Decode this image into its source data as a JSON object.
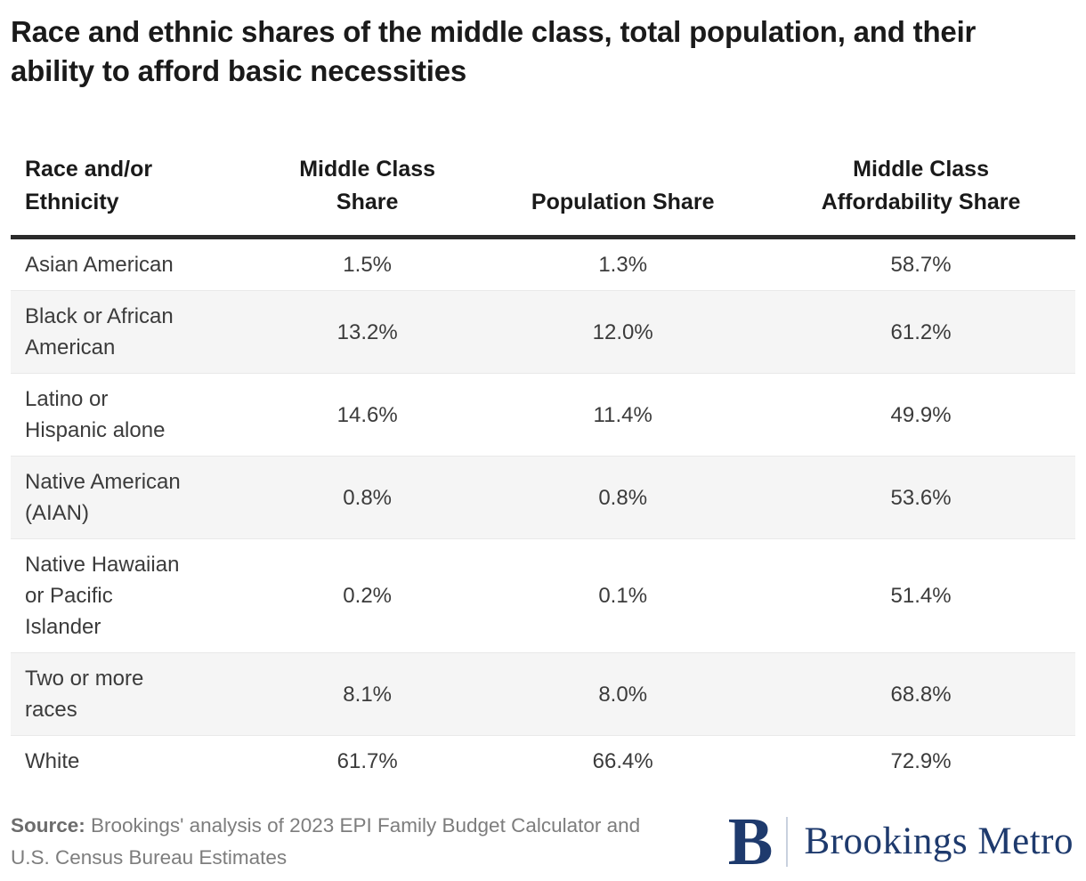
{
  "title": "Race and ethnic shares of the middle class, total population, and their ability to afford basic necessities",
  "table": {
    "headers": [
      "Race and/or\nEthnicity",
      "Middle Class\nShare",
      "Population Share",
      "Middle Class\nAffordability Share"
    ],
    "rows": [
      {
        "label": "Asian American",
        "middle_class_share": "1.5%",
        "population_share": "1.3%",
        "affordability_share": "58.7%"
      },
      {
        "label": "Black or African\nAmerican",
        "middle_class_share": "13.2%",
        "population_share": "12.0%",
        "affordability_share": "61.2%"
      },
      {
        "label": "Latino or\nHispanic alone",
        "middle_class_share": "14.6%",
        "population_share": "11.4%",
        "affordability_share": "49.9%"
      },
      {
        "label": "Native American\n(AIAN)",
        "middle_class_share": "0.8%",
        "population_share": "0.8%",
        "affordability_share": "53.6%"
      },
      {
        "label": "Native Hawaiian\nor Pacific\nIslander",
        "middle_class_share": "0.2%",
        "population_share": "0.1%",
        "affordability_share": "51.4%"
      },
      {
        "label": "Two or more\nraces",
        "middle_class_share": "8.1%",
        "population_share": "8.0%",
        "affordability_share": "68.8%"
      },
      {
        "label": "White",
        "middle_class_share": "61.7%",
        "population_share": "66.4%",
        "affordability_share": "72.9%"
      }
    ]
  },
  "footer": {
    "source_label": "Source:",
    "source_text": " Brookings' analysis of 2023 EPI Family Budget Calculator and U.S. Census Bureau Estimates",
    "logo": {
      "monogram": "B",
      "wordmark": "Brookings Metro"
    }
  },
  "colors": {
    "title_text": "#1a1a1a",
    "cell_text": "#3b3b3b",
    "header_rule": "#2b2b2b",
    "row_stripe": "#f5f5f5",
    "row_border": "#e9e9e9",
    "source_text": "#7d7d7d",
    "brand_navy": "#1e3a6d",
    "logo_divider": "#c9d1de"
  },
  "chart_data": {
    "type": "table",
    "title": "Race and ethnic shares of the middle class, total population, and their ability to afford basic necessities",
    "columns": [
      "Race and/or Ethnicity",
      "Middle Class Share",
      "Population Share",
      "Middle Class Affordability Share"
    ],
    "rows": [
      [
        "Asian American",
        1.5,
        1.3,
        58.7
      ],
      [
        "Black or African American",
        13.2,
        12.0,
        61.2
      ],
      [
        "Latino or Hispanic alone",
        14.6,
        11.4,
        49.9
      ],
      [
        "Native American (AIAN)",
        0.8,
        0.8,
        53.6
      ],
      [
        "Native Hawaiian or Pacific Islander",
        0.2,
        0.1,
        51.4
      ],
      [
        "Two or more races",
        8.1,
        8.0,
        68.8
      ],
      [
        "White",
        61.7,
        66.4,
        72.9
      ]
    ],
    "units": "%",
    "source": "Brookings' analysis of 2023 EPI Family Budget Calculator and U.S. Census Bureau Estimates",
    "branding": "Brookings Metro"
  }
}
